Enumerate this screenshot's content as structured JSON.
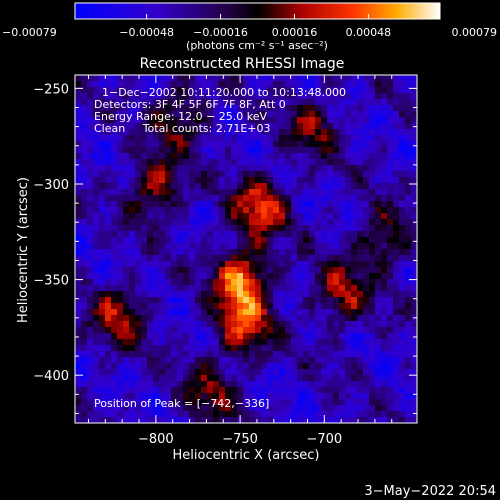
{
  "chart_data": {
    "type": "heatmap",
    "title": "Reconstructed RHESSI Image",
    "xlabel": "Heliocentric X (arcsec)",
    "ylabel": "Heliocentric Y (arcsec)",
    "xlim": [
      -848,
      -645
    ],
    "ylim": [
      -425,
      -243
    ],
    "x_ticks": [
      -800,
      -750,
      -700
    ],
    "x_tick_labels": [
      "−800",
      "−750",
      "−700"
    ],
    "y_ticks": [
      -400,
      -350,
      -300,
      -250
    ],
    "y_tick_labels": [
      "−400",
      "−350",
      "−300",
      "−250"
    ],
    "colorbar": {
      "min": -0.00079,
      "max": 0.00079,
      "ticks": [
        -0.00079,
        -0.00048,
        -0.00016,
        0.00016,
        0.00048,
        0.00079
      ],
      "tick_labels": [
        "−0.00079",
        "−0.00048",
        "−0.00016",
        "0.00016",
        "0.00048",
        "0.00079"
      ],
      "unit_label": "(photons cm⁻² s⁻¹ asec⁻²)"
    },
    "annotations": [
      "1−Dec−2002 10:11:20.000 to 10:13:48.000",
      "Detectors: 3F 4F 5F 6F 7F 8F, Att 0",
      "Energy Range: 12.0 − 25.0 keV",
      "Clean     Total counts: 2.71E+03",
      "Position of Peak = [−742,−336]"
    ],
    "peak_position": [
      -742,
      -336
    ],
    "emission_regions": [
      {
        "center": [
          -749,
          -350
        ],
        "level": 0.00079
      },
      {
        "center": [
          -738,
          -312
        ],
        "level": 0.00065
      },
      {
        "center": [
          -748,
          -375
        ],
        "level": 0.0006
      },
      {
        "center": [
          -800,
          -302
        ],
        "level": 0.00055
      },
      {
        "center": [
          -822,
          -368
        ],
        "level": 0.0005
      },
      {
        "center": [
          -690,
          -358
        ],
        "level": 0.0005
      },
      {
        "center": [
          -785,
          -265
        ],
        "level": 0.00045
      },
      {
        "center": [
          -706,
          -270
        ],
        "level": 0.0004
      },
      {
        "center": [
          -665,
          -330
        ],
        "level": 0.00045
      },
      {
        "center": [
          -768,
          -410
        ],
        "level": 0.0004
      }
    ]
  },
  "footer": {
    "timestamp": "3−May−2022 20:54"
  }
}
